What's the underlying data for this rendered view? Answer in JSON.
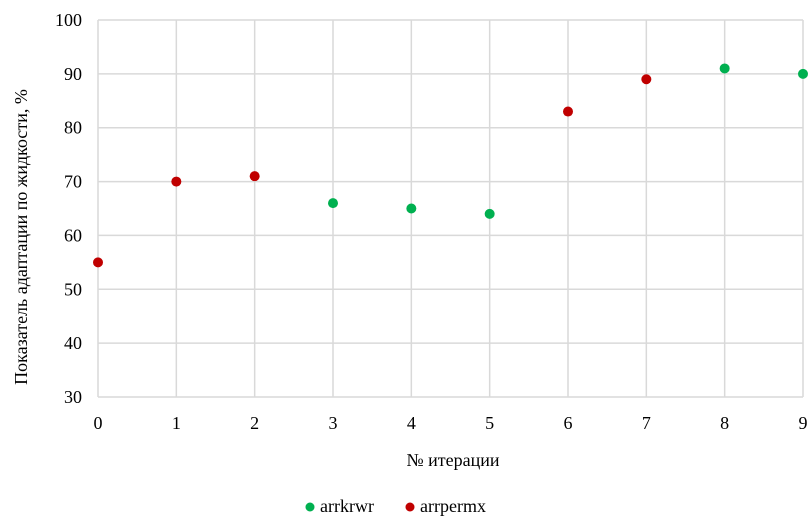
{
  "chart_data": {
    "type": "scatter",
    "title": "",
    "xlabel": "№ итерации",
    "ylabel": "Показатель адаптации по жидкости, %",
    "xlim": [
      0,
      9
    ],
    "ylim": [
      30,
      100
    ],
    "x_ticks": [
      0,
      1,
      2,
      3,
      4,
      5,
      6,
      7,
      8,
      9
    ],
    "y_ticks": [
      30,
      40,
      50,
      60,
      70,
      80,
      90,
      100
    ],
    "grid": true,
    "legend_position": "bottom",
    "series": [
      {
        "name": "arrkrwr",
        "color": "#00b050",
        "points": [
          {
            "x": 3,
            "y": 66
          },
          {
            "x": 4,
            "y": 65
          },
          {
            "x": 5,
            "y": 64
          },
          {
            "x": 8,
            "y": 91
          },
          {
            "x": 9,
            "y": 90
          }
        ]
      },
      {
        "name": "arrpermx",
        "color": "#c00000",
        "points": [
          {
            "x": 0,
            "y": 55
          },
          {
            "x": 1,
            "y": 70
          },
          {
            "x": 2,
            "y": 71
          },
          {
            "x": 6,
            "y": 83
          },
          {
            "x": 7,
            "y": 89
          }
        ]
      }
    ]
  }
}
